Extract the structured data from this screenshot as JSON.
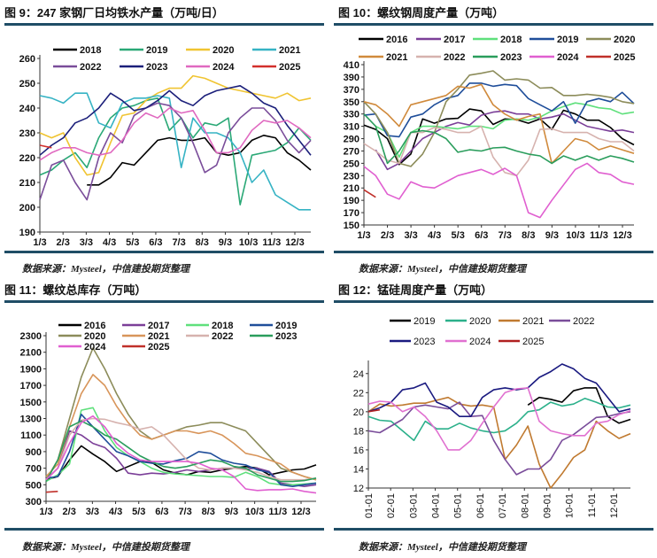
{
  "chart_data": [
    {
      "type": "line",
      "title": "图 9：247 家钢厂日均铁水产量（万吨/日）",
      "source": "数据来源：Mysteel，中信建投期货整理",
      "xticks": [
        "1/3",
        "2/3",
        "3/3",
        "4/3",
        "5/3",
        "6/3",
        "7/3",
        "8/3",
        "9/3",
        "10/3",
        "11/3",
        "12/3"
      ],
      "yticks": [
        190,
        200,
        210,
        220,
        230,
        240,
        250,
        260
      ],
      "ylim": [
        190,
        260
      ],
      "series": [
        {
          "name": "2018",
          "color": "#000000",
          "values": [
            null,
            null,
            null,
            null,
            209,
            209,
            212,
            218,
            217,
            222,
            227,
            228,
            227,
            227,
            228,
            222,
            221,
            222,
            227,
            229,
            228,
            222,
            219,
            215
          ]
        },
        {
          "name": "2019",
          "color": "#2aa876",
          "values": [
            213,
            215,
            219,
            222,
            216,
            228,
            236,
            240,
            241,
            243,
            244,
            231,
            236,
            228,
            234,
            233,
            236,
            201,
            221,
            222,
            223,
            226,
            232,
            227
          ]
        },
        {
          "name": "2020",
          "color": "#f0c431",
          "values": [
            230,
            228,
            230,
            220,
            213,
            214,
            226,
            237,
            238,
            243,
            246,
            248,
            248,
            253,
            252,
            250,
            248,
            247,
            246,
            245,
            244,
            246,
            243,
            244
          ]
        },
        {
          "name": "2021",
          "color": "#36b3c4",
          "values": [
            245,
            244,
            242,
            246,
            246,
            234,
            232,
            242,
            244,
            244,
            245,
            244,
            216,
            236,
            230,
            230,
            228,
            222,
            210,
            215,
            205,
            202,
            199,
            199
          ]
        },
        {
          "name": "2022",
          "color": "#7a4d9a",
          "values": [
            203,
            217,
            219,
            210,
            203,
            220,
            230,
            226,
            237,
            240,
            242,
            241,
            236,
            226,
            214,
            217,
            230,
            236,
            240,
            240,
            235,
            227,
            222,
            227
          ]
        },
        {
          "name": "2023",
          "color": "#1b1f7a",
          "values": [
            221,
            225,
            228,
            234,
            236,
            240,
            246,
            243,
            239,
            240,
            243,
            247,
            243,
            241,
            245,
            247,
            248,
            249,
            246,
            242,
            240,
            233,
            227,
            221
          ]
        },
        {
          "name": "2024",
          "color": "#e069c0",
          "values": [
            219,
            222,
            224,
            224,
            222,
            221,
            222,
            227,
            234,
            238,
            236,
            240,
            238,
            239,
            231,
            222,
            222,
            224,
            231,
            235,
            234,
            235,
            232,
            228
          ]
        },
        {
          "name": "2025",
          "color": "#d2302c",
          "values": [
            225,
            224
          ]
        }
      ]
    },
    {
      "type": "line",
      "title": "图 10：螺纹钢周度产量（万吨）",
      "source": "数据来源：Mysteel，中信建投期货整理",
      "xticks": [
        "1/3",
        "2/3",
        "3/3",
        "4/3",
        "5/3",
        "6/3",
        "7/3",
        "8/3",
        "9/3",
        "10/3",
        "11/3",
        "12/3"
      ],
      "yticks": [
        150,
        170,
        190,
        210,
        230,
        250,
        270,
        290,
        310,
        330,
        350,
        370,
        390,
        410
      ],
      "ylim": [
        150,
        410
      ],
      "series": [
        {
          "name": "2016",
          "color": "#000000",
          "values": [
            312,
            305,
            290,
            248,
            265,
            322,
            315,
            322,
            323,
            338,
            335,
            313,
            322,
            321,
            315,
            322,
            305,
            336,
            330,
            320,
            320,
            308,
            290,
            280
          ]
        },
        {
          "name": "2017",
          "color": "#7b3f98",
          "values": [
            null,
            272,
            240,
            250,
            270,
            290,
            300,
            310,
            316,
            312,
            328,
            333,
            335,
            330,
            330,
            322,
            325,
            330,
            320,
            310,
            306,
            302,
            304,
            300
          ]
        },
        {
          "name": "2018",
          "color": "#5fe07c",
          "values": [
            null,
            310,
            300,
            260,
            300,
            310,
            310,
            308,
            306,
            310,
            310,
            306,
            320,
            322,
            320,
            325,
            335,
            342,
            348,
            345,
            340,
            338,
            330,
            333
          ]
        },
        {
          "name": "2019",
          "color": "#1f4e9a",
          "values": [
            328,
            330,
            295,
            293,
            325,
            330,
            345,
            355,
            360,
            380,
            380,
            375,
            378,
            376,
            355,
            345,
            335,
            350,
            315,
            350,
            355,
            350,
            365,
            347
          ]
        },
        {
          "name": "2020",
          "color": "#8c8c5a",
          "values": [
            350,
            330,
            300,
            250,
            245,
            265,
            300,
            350,
            370,
            393,
            396,
            400,
            385,
            387,
            385,
            372,
            373,
            360,
            360,
            362,
            360,
            357,
            350,
            347
          ]
        },
        {
          "name": "2021",
          "color": "#d08a3c",
          "values": [
            350,
            345,
            330,
            310,
            345,
            350,
            355,
            360,
            375,
            372,
            378,
            345,
            330,
            320,
            326,
            330,
            250,
            270,
            290,
            285,
            272,
            278,
            272,
            266
          ]
        },
        {
          "name": "2022",
          "color": "#d6b2ae",
          "values": [
            282,
            270,
            255,
            250,
            300,
            300,
            308,
            305,
            300,
            300,
            310,
            260,
            235,
            230,
            255,
            305,
            306,
            300,
            300,
            300,
            290,
            285,
            285,
            270
          ]
        },
        {
          "name": "2023",
          "color": "#2a9d5c",
          "values": [
            330,
            310,
            250,
            270,
            300,
            303,
            300,
            290,
            268,
            272,
            270,
            275,
            276,
            270,
            265,
            262,
            250,
            262,
            255,
            262,
            255,
            262,
            258,
            252
          ]
        },
        {
          "name": "2024",
          "color": "#e05fd0",
          "values": [
            245,
            230,
            200,
            192,
            220,
            212,
            210,
            220,
            230,
            235,
            240,
            232,
            242,
            230,
            170,
            162,
            190,
            215,
            240,
            250,
            235,
            232,
            220,
            216
          ]
        },
        {
          "name": "2025",
          "color": "#c0302a",
          "values": [
            207,
            195
          ]
        }
      ]
    },
    {
      "type": "line",
      "title": "图 11：螺纹总库存（万吨）",
      "source": "数据来源：Mysteel，中信建投期货整理",
      "xticks": [
        "1/3",
        "2/3",
        "3/3",
        "4/3",
        "5/3",
        "6/3",
        "7/3",
        "8/3",
        "9/3",
        "10/3",
        "11/3",
        "12/3"
      ],
      "yticks": [
        300,
        500,
        700,
        900,
        1100,
        1300,
        1500,
        1700,
        1900,
        2100,
        2300
      ],
      "ylim": [
        300,
        2300
      ],
      "series": [
        {
          "name": "2016",
          "color": "#000000",
          "values": [
            560,
            600,
            800,
            970,
            870,
            780,
            660,
            720,
            780,
            770,
            680,
            640,
            620,
            660,
            650,
            680,
            700,
            720,
            700,
            620,
            650,
            680,
            690,
            740
          ]
        },
        {
          "name": "2017",
          "color": "#7b3f98",
          "values": [
            560,
            700,
            1150,
            1100,
            1000,
            950,
            820,
            640,
            620,
            640,
            630,
            650,
            680,
            660,
            680,
            700,
            700,
            690,
            700,
            660,
            520,
            500,
            480,
            500
          ]
        },
        {
          "name": "2018",
          "color": "#5fe07c",
          "values": [
            540,
            620,
            750,
            1400,
            1430,
            1150,
            950,
            850,
            780,
            700,
            650,
            630,
            620,
            610,
            600,
            600,
            590,
            650,
            600,
            520,
            500,
            500,
            510,
            520
          ]
        },
        {
          "name": "2019",
          "color": "#1f4e9a",
          "values": [
            580,
            600,
            900,
            1350,
            1200,
            1050,
            900,
            850,
            780,
            760,
            750,
            790,
            820,
            900,
            880,
            800,
            760,
            740,
            680,
            650,
            500,
            480,
            500,
            520
          ]
        },
        {
          "name": "2020",
          "color": "#8c8c5a",
          "values": [
            560,
            800,
            1300,
            1800,
            2150,
            1900,
            1600,
            1350,
            1150,
            1050,
            1100,
            1150,
            1200,
            1220,
            1250,
            1250,
            1200,
            1150,
            1000,
            850,
            700,
            650,
            600,
            560
          ]
        },
        {
          "name": "2021",
          "color": "#d8955a",
          "values": [
            600,
            750,
            1200,
            1600,
            1830,
            1700,
            1450,
            1250,
            1100,
            1050,
            1100,
            1150,
            1150,
            1120,
            1150,
            1100,
            1000,
            880,
            850,
            800,
            750,
            650,
            600,
            560
          ]
        },
        {
          "name": "2022",
          "color": "#d6b2ae",
          "values": [
            560,
            700,
            1100,
            1280,
            1300,
            1290,
            1250,
            1220,
            1170,
            1200,
            1100,
            950,
            800,
            700,
            680,
            700,
            700,
            680,
            650,
            600,
            560,
            560,
            560,
            580
          ]
        },
        {
          "name": "2023",
          "color": "#2a9d5c",
          "values": [
            540,
            800,
            1200,
            1270,
            1200,
            1100,
            1050,
            950,
            850,
            780,
            720,
            700,
            720,
            760,
            800,
            780,
            720,
            700,
            620,
            580,
            540,
            540,
            550,
            580
          ]
        },
        {
          "name": "2024",
          "color": "#e05fd0",
          "values": [
            560,
            700,
            1000,
            1250,
            1330,
            1200,
            1000,
            880,
            800,
            780,
            780,
            780,
            780,
            760,
            700,
            680,
            600,
            450,
            430,
            440,
            440,
            450,
            420,
            400
          ]
        },
        {
          "name": "2025",
          "color": "#c0302a",
          "values": [
            410,
            420
          ]
        }
      ]
    },
    {
      "type": "line",
      "title": "图 12：锰硅周度产量（万吨）",
      "source": "数据来源：Mysteel，中信建投期货整理",
      "xticks": [
        "01-01",
        "02-01",
        "03-01",
        "04-01",
        "05-01",
        "06-01",
        "07-01",
        "08-01",
        "09-01",
        "10-01",
        "11-01",
        "12-01"
      ],
      "yticks": [
        12,
        14,
        16,
        18,
        20,
        22,
        24
      ],
      "ylim": [
        12,
        25
      ],
      "series": [
        {
          "name": "2019",
          "color": "#000000",
          "values": [
            null,
            null,
            null,
            null,
            null,
            null,
            null,
            null,
            null,
            null,
            null,
            null,
            null,
            null,
            20.7,
            21.5,
            21.3,
            21.0,
            22.2,
            22.5,
            22.5,
            19.5,
            18.8,
            19.2
          ]
        },
        {
          "name": "2020",
          "color": "#2bb08a",
          "values": [
            19.5,
            19.1,
            19.0,
            18.0,
            17.0,
            19.0,
            18.2,
            18.2,
            18.8,
            18.3,
            18.0,
            17.8,
            18.0,
            18.8,
            20.0,
            20.2,
            21.0,
            20.6,
            20.8,
            21.4,
            21.0,
            20.5,
            20.4,
            20.7
          ]
        },
        {
          "name": "2021",
          "color": "#c07a30",
          "values": [
            20.0,
            20.8,
            20.6,
            20.7,
            20.9,
            20.9,
            21.2,
            21.5,
            20.8,
            20.6,
            20.7,
            20.5,
            15.0,
            16.5,
            18.5,
            14.5,
            12.0,
            13.5,
            15.2,
            16.0,
            19.0,
            18.0,
            17.2,
            17.7
          ]
        },
        {
          "name": "2022",
          "color": "#7a4d9a",
          "values": [
            18.0,
            17.8,
            18.5,
            19.2,
            20.5,
            20.7,
            20.5,
            20.3,
            21.0,
            19.5,
            19.6,
            17.0,
            15.0,
            13.4,
            14.0,
            14.0,
            15.0,
            17.0,
            17.6,
            18.5,
            19.4,
            19.5,
            19.8,
            20.0
          ]
        },
        {
          "name": "2023",
          "color": "#1a1a80",
          "values": [
            20.0,
            20.4,
            21.0,
            22.3,
            22.5,
            23.0,
            21.0,
            20.5,
            19.5,
            19.5,
            21.5,
            22.3,
            22.5,
            22.3,
            22.5,
            23.6,
            24.2,
            25.0,
            24.5,
            23.5,
            23.0,
            21.5,
            20.0,
            20.3
          ]
        },
        {
          "name": "2024",
          "color": "#e070d0",
          "values": [
            20.8,
            21.1,
            21.0,
            20.0,
            20.5,
            19.5,
            18.0,
            16.0,
            16.0,
            17.0,
            18.8,
            20.5,
            22.0,
            22.4,
            22.5,
            19.0,
            18.0,
            17.7,
            17.5,
            17.5,
            18.8,
            19.0,
            19.7,
            20.1
          ]
        },
        {
          "name": "2025",
          "color": "#b02020",
          "values": [
            20.0,
            20.2
          ]
        }
      ]
    }
  ]
}
